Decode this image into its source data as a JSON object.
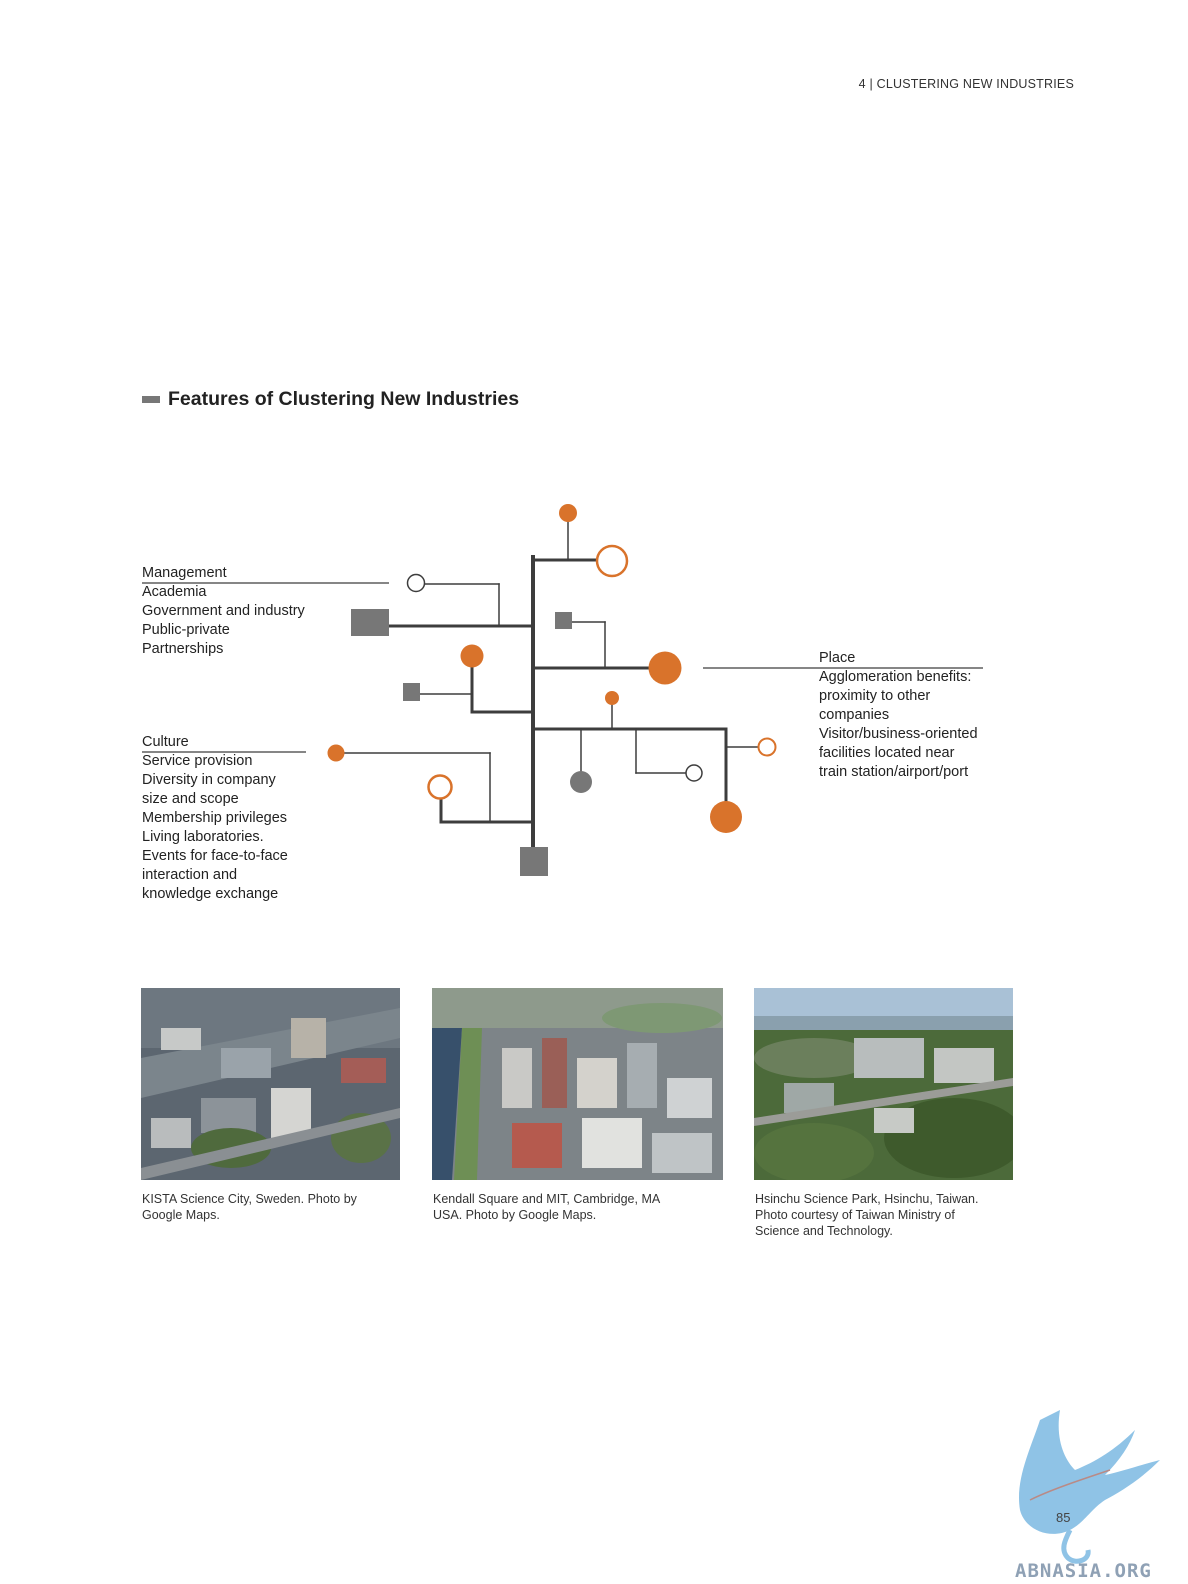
{
  "header": {
    "running_head": "4 | CLUSTERING NEW INDUSTRIES"
  },
  "section": {
    "title": "Features of Clustering New Industries"
  },
  "diagram": {
    "management": {
      "title": "Management",
      "items": [
        "Academia",
        "Government and industry",
        "Public-private",
        "Partnerships"
      ]
    },
    "culture": {
      "title": "Culture",
      "items": [
        "Service provision",
        "Diversity in company",
        "size and scope",
        "Membership privileges",
        "Living laboratories.",
        "Events for face-to-face",
        "interaction and",
        "knowledge exchange"
      ]
    },
    "place": {
      "title": "Place",
      "items": [
        "Agglomeration benefits:",
        "proximity to other",
        "companies",
        "Visitor/business-oriented",
        "facilities located near",
        "train station/airport/port"
      ]
    },
    "colors": {
      "orange": "#d9732b",
      "gray": "#777777",
      "line": "#3d3d3d"
    }
  },
  "photos": [
    {
      "caption": [
        "KISTA Science City, Sweden. Photo by",
        "Google Maps."
      ]
    },
    {
      "caption": [
        "Kendall Square and MIT, Cambridge, MA",
        "USA. Photo by Google Maps."
      ]
    },
    {
      "caption": [
        "Hsinchu Science Park, Hsinchu, Taiwan.",
        "Photo courtesy of Taiwan Ministry of",
        "Science and Technology."
      ]
    }
  ],
  "footer": {
    "page_number": "85",
    "watermark": "ABNASIA.ORG"
  }
}
